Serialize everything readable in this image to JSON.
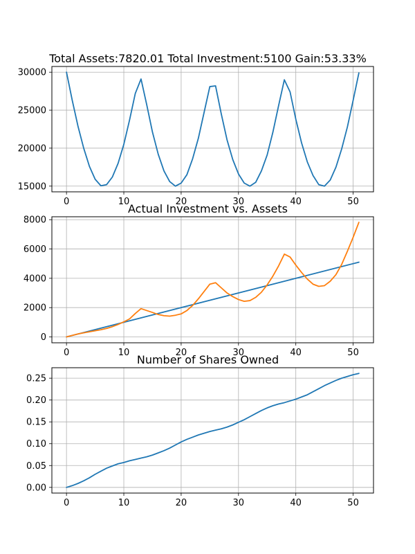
{
  "colors": {
    "series1": "#1f77b4",
    "series2": "#ff7f0e",
    "grid": "#b0b0b0",
    "background": "#ffffff"
  },
  "chart_data": [
    {
      "type": "line",
      "title": "Total Assets:7820.01  Total Investment:5100  Gain:53.33%",
      "xlabel": "",
      "ylabel": "",
      "xlim": [
        -2.55,
        53.55
      ],
      "ylim": [
        14250,
        30750
      ],
      "xticks": [
        0,
        10,
        20,
        30,
        40,
        50
      ],
      "yticks": [
        15000,
        20000,
        25000,
        30000
      ],
      "grid": true,
      "series": [
        {
          "color": "#1f77b4",
          "x": [
            0,
            1,
            2,
            3,
            4,
            5,
            6,
            7,
            8,
            9,
            10,
            11,
            12,
            13,
            14,
            15,
            16,
            17,
            18,
            19,
            20,
            21,
            22,
            23,
            24,
            25,
            26,
            27,
            28,
            29,
            30,
            31,
            32,
            33,
            34,
            35,
            36,
            37,
            38,
            39,
            40,
            41,
            42,
            43,
            44,
            45,
            46,
            47,
            48,
            49,
            50,
            51
          ],
          "values": [
            30000,
            26300,
            22900,
            20000,
            17600,
            15900,
            15050,
            15200,
            16200,
            18000,
            20500,
            23700,
            27200,
            29100,
            25700,
            22100,
            19200,
            17000,
            15600,
            15000,
            15400,
            16500,
            18600,
            21300,
            24700,
            28100,
            28200,
            24500,
            21100,
            18500,
            16600,
            15400,
            15000,
            15500,
            17000,
            19100,
            22100,
            25600,
            29000,
            27400,
            23800,
            20700,
            18200,
            16400,
            15200,
            15000,
            15800,
            17500,
            19900,
            22800,
            26300,
            29900
          ]
        }
      ]
    },
    {
      "type": "line",
      "title": "Actual Investment vs. Assets",
      "xlabel": "",
      "ylabel": "",
      "xlim": [
        -2.55,
        53.55
      ],
      "ylim": [
        -400,
        8200
      ],
      "xticks": [
        0,
        10,
        20,
        30,
        40,
        50
      ],
      "yticks": [
        0,
        2000,
        4000,
        6000,
        8000
      ],
      "grid": true,
      "series": [
        {
          "color": "#1f77b4",
          "x": [
            0,
            51
          ],
          "values": [
            0,
            5100
          ]
        },
        {
          "color": "#ff7f0e",
          "x": [
            0,
            1,
            2,
            3,
            4,
            5,
            6,
            7,
            8,
            9,
            10,
            11,
            12,
            13,
            14,
            15,
            16,
            17,
            18,
            19,
            20,
            21,
            22,
            23,
            24,
            25,
            26,
            27,
            28,
            29,
            30,
            31,
            32,
            33,
            34,
            35,
            36,
            37,
            38,
            39,
            40,
            41,
            42,
            43,
            44,
            45,
            46,
            47,
            48,
            49,
            50,
            51
          ],
          "values": [
            0,
            100,
            200,
            280,
            350,
            420,
            490,
            580,
            700,
            850,
            1030,
            1230,
            1600,
            1930,
            1800,
            1670,
            1530,
            1450,
            1420,
            1480,
            1570,
            1800,
            2150,
            2600,
            3100,
            3600,
            3700,
            3350,
            3000,
            2750,
            2550,
            2430,
            2480,
            2700,
            3050,
            3550,
            4150,
            4850,
            5650,
            5450,
            4900,
            4400,
            3950,
            3600,
            3450,
            3500,
            3800,
            4250,
            4950,
            5850,
            6800,
            7820
          ]
        }
      ]
    },
    {
      "type": "line",
      "title": "Number of Shares Owned",
      "xlabel": "",
      "ylabel": "",
      "xlim": [
        -2.55,
        53.55
      ],
      "ylim": [
        -0.013,
        0.274
      ],
      "xticks": [
        0,
        10,
        20,
        30,
        40,
        50
      ],
      "yticks": [
        0.0,
        0.05,
        0.1,
        0.15,
        0.2,
        0.25
      ],
      "ytick_labels": [
        "0.00",
        "0.05",
        "0.10",
        "0.15",
        "0.20",
        "0.25"
      ],
      "grid": true,
      "series": [
        {
          "color": "#1f77b4",
          "x": [
            0,
            1,
            2,
            3,
            4,
            5,
            6,
            7,
            8,
            9,
            10,
            11,
            12,
            13,
            14,
            15,
            16,
            17,
            18,
            19,
            20,
            21,
            22,
            23,
            24,
            25,
            26,
            27,
            28,
            29,
            30,
            31,
            32,
            33,
            34,
            35,
            36,
            37,
            38,
            39,
            40,
            41,
            42,
            43,
            44,
            45,
            46,
            47,
            48,
            49,
            50,
            51
          ],
          "values": [
            0.0,
            0.004,
            0.009,
            0.015,
            0.022,
            0.03,
            0.037,
            0.044,
            0.049,
            0.054,
            0.057,
            0.061,
            0.064,
            0.067,
            0.07,
            0.074,
            0.079,
            0.084,
            0.09,
            0.097,
            0.104,
            0.11,
            0.115,
            0.12,
            0.124,
            0.128,
            0.131,
            0.134,
            0.138,
            0.143,
            0.149,
            0.155,
            0.162,
            0.169,
            0.176,
            0.182,
            0.187,
            0.191,
            0.194,
            0.198,
            0.202,
            0.207,
            0.212,
            0.219,
            0.226,
            0.233,
            0.239,
            0.245,
            0.25,
            0.254,
            0.258,
            0.261
          ]
        }
      ]
    }
  ]
}
